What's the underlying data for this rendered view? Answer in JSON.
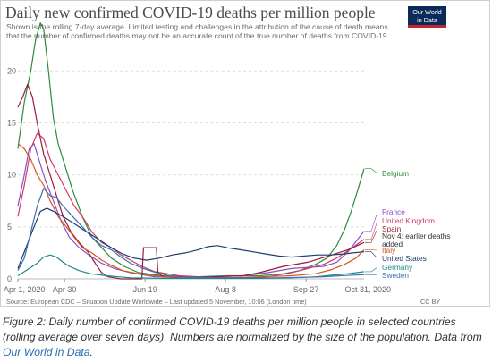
{
  "header": {
    "title": "Daily new confirmed COVID-19 deaths per million people",
    "subtitle": "Shown is the rolling 7-day average. Limited testing and challenges in the attribution of the cause of death means that the number of confirmed deaths may not be an accurate count of the true number of deaths from COVID-19.",
    "logo_line1": "Our World",
    "logo_line2": "in Data"
  },
  "footer": {
    "source": "Source: European CDC – Situation Update Worldwide – Last updated 5 November, 10:06 (London time)",
    "license": "CC BY"
  },
  "caption": {
    "text": "Figure 2: Daily number of confirmed COVID-19 deaths per million people in selected countries (rolling average over seven days). Numbers are normalized by the size of the population. Data from ",
    "link": "Our World in Data",
    "end": "."
  },
  "annotation": {
    "line1": "Nov 4: earlier deaths",
    "line2": "added",
    "color": "#333333"
  },
  "chart_data": {
    "type": "line",
    "title": "Daily new confirmed COVID-19 deaths per million people",
    "xlabel": "",
    "ylabel": "",
    "ylim": [
      0,
      22
    ],
    "yticks": [
      0,
      5,
      10,
      15,
      20
    ],
    "x_tick_labels": [
      {
        "day": 0,
        "label": "Apr 1, 2020"
      },
      {
        "day": 29,
        "label": "Apr 30"
      },
      {
        "day": 79,
        "label": "Jun 19"
      },
      {
        "day": 129,
        "label": "Aug 8"
      },
      {
        "day": 179,
        "label": "Sep 27"
      },
      {
        "day": 213,
        "label": "Oct 31, 2020"
      }
    ],
    "grid": true,
    "legend_placement": "right, at line ends",
    "series": [
      {
        "name": "Belgium",
        "color": "#2e8b3a",
        "points": [
          [
            0,
            12.5
          ],
          [
            4,
            17
          ],
          [
            8,
            20
          ],
          [
            11,
            23
          ],
          [
            14,
            24.6
          ],
          [
            16,
            24
          ],
          [
            19,
            20
          ],
          [
            22,
            15.5
          ],
          [
            25,
            13
          ],
          [
            29,
            11
          ],
          [
            34,
            8.5
          ],
          [
            40,
            6
          ],
          [
            46,
            4
          ],
          [
            52,
            3
          ],
          [
            58,
            2
          ],
          [
            66,
            1.2
          ],
          [
            75,
            0.6
          ],
          [
            90,
            0.3
          ],
          [
            110,
            0.2
          ],
          [
            130,
            0.3
          ],
          [
            150,
            0.3
          ],
          [
            165,
            0.5
          ],
          [
            175,
            0.8
          ],
          [
            185,
            1.4
          ],
          [
            192,
            2
          ],
          [
            198,
            3.2
          ],
          [
            203,
            4.8
          ],
          [
            207,
            6.5
          ],
          [
            211,
            8.5
          ],
          [
            215,
            10.6
          ]
        ]
      },
      {
        "name": "France",
        "color": "#8a4fc8",
        "points": [
          [
            0,
            7
          ],
          [
            4,
            10
          ],
          [
            7,
            12.5
          ],
          [
            10,
            13
          ],
          [
            13,
            11.5
          ],
          [
            17,
            9.5
          ],
          [
            22,
            7.5
          ],
          [
            27,
            5.5
          ],
          [
            32,
            4
          ],
          [
            38,
            3
          ],
          [
            45,
            2.2
          ],
          [
            52,
            1.5
          ],
          [
            60,
            1
          ],
          [
            70,
            0.6
          ],
          [
            85,
            0.2
          ],
          [
            100,
            0.2
          ],
          [
            120,
            0.2
          ],
          [
            140,
            0.3
          ],
          [
            155,
            0.6
          ],
          [
            170,
            1
          ],
          [
            180,
            1.1
          ],
          [
            190,
            1.2
          ],
          [
            198,
            1.6
          ],
          [
            205,
            2.6
          ],
          [
            210,
            3.6
          ],
          [
            215,
            4.6
          ]
        ]
      },
      {
        "name": "United Kingdom",
        "color": "#d03a66",
        "points": [
          [
            0,
            6
          ],
          [
            4,
            9
          ],
          [
            8,
            12.5
          ],
          [
            12,
            14
          ],
          [
            16,
            13.5
          ],
          [
            20,
            11.5
          ],
          [
            25,
            10
          ],
          [
            30,
            8.5
          ],
          [
            35,
            7
          ],
          [
            40,
            6
          ],
          [
            46,
            4.5
          ],
          [
            52,
            3.5
          ],
          [
            58,
            3
          ],
          [
            64,
            2.3
          ],
          [
            70,
            1.8
          ],
          [
            77,
            1.2
          ],
          [
            85,
            0.7
          ],
          [
            100,
            0.3
          ],
          [
            120,
            0.15
          ],
          [
            140,
            0.1
          ],
          [
            155,
            0.2
          ],
          [
            170,
            0.6
          ],
          [
            180,
            1
          ],
          [
            190,
            1.4
          ],
          [
            198,
            2
          ],
          [
            206,
            2.8
          ],
          [
            215,
            3.8
          ]
        ]
      },
      {
        "name": "Spain",
        "color": "#9a1c36",
        "points": [
          [
            0,
            16.5
          ],
          [
            3,
            17.5
          ],
          [
            6,
            18.7
          ],
          [
            9,
            17.5
          ],
          [
            12,
            15
          ],
          [
            16,
            12
          ],
          [
            20,
            10
          ],
          [
            24,
            8
          ],
          [
            28,
            6
          ],
          [
            33,
            4.5
          ],
          [
            38,
            3.5
          ],
          [
            44,
            2.5
          ],
          [
            48,
            1.5
          ],
          [
            52,
            0.6
          ],
          [
            56,
            0.2
          ],
          [
            60,
            0.1
          ],
          [
            64,
            0
          ],
          [
            68,
            0
          ],
          [
            72,
            0
          ],
          [
            77,
            0
          ],
          [
            78,
            3
          ],
          [
            82,
            3
          ],
          [
            86,
            3
          ],
          [
            87,
            0.6
          ],
          [
            90,
            0.2
          ],
          [
            100,
            0.1
          ],
          [
            120,
            0.2
          ],
          [
            140,
            0.3
          ],
          [
            150,
            0.6
          ],
          [
            165,
            1.2
          ],
          [
            180,
            1.6
          ],
          [
            195,
            2.3
          ],
          [
            205,
            2.8
          ],
          [
            215,
            3.5
          ]
        ]
      },
      {
        "name": "Italy",
        "color": "#d4581e",
        "points": [
          [
            0,
            13
          ],
          [
            4,
            12.5
          ],
          [
            8,
            11.5
          ],
          [
            12,
            10
          ],
          [
            16,
            9
          ],
          [
            20,
            7.5
          ],
          [
            25,
            6
          ],
          [
            30,
            5
          ],
          [
            35,
            4
          ],
          [
            40,
            3
          ],
          [
            46,
            2.5
          ],
          [
            52,
            1.8
          ],
          [
            58,
            1.3
          ],
          [
            65,
            0.8
          ],
          [
            75,
            0.5
          ],
          [
            90,
            0.2
          ],
          [
            110,
            0.1
          ],
          [
            130,
            0.1
          ],
          [
            150,
            0.2
          ],
          [
            170,
            0.3
          ],
          [
            185,
            0.5
          ],
          [
            195,
            0.9
          ],
          [
            203,
            1.4
          ],
          [
            210,
            2
          ],
          [
            215,
            2.8
          ]
        ]
      },
      {
        "name": "United States",
        "color": "#1f3d6e",
        "points": [
          [
            0,
            1
          ],
          [
            5,
            3
          ],
          [
            10,
            5
          ],
          [
            14,
            6.5
          ],
          [
            18,
            6.8
          ],
          [
            22,
            6.5
          ],
          [
            28,
            6
          ],
          [
            35,
            5.3
          ],
          [
            42,
            4.6
          ],
          [
            50,
            3.8
          ],
          [
            58,
            3
          ],
          [
            65,
            2.4
          ],
          [
            72,
            2
          ],
          [
            80,
            1.8
          ],
          [
            88,
            2
          ],
          [
            96,
            2.3
          ],
          [
            104,
            2.5
          ],
          [
            112,
            2.8
          ],
          [
            118,
            3.1
          ],
          [
            124,
            3.2
          ],
          [
            130,
            3
          ],
          [
            138,
            2.8
          ],
          [
            146,
            2.6
          ],
          [
            154,
            2.4
          ],
          [
            162,
            2.2
          ],
          [
            170,
            2.1
          ],
          [
            178,
            2.2
          ],
          [
            186,
            2.3
          ],
          [
            194,
            2.3
          ],
          [
            202,
            2.4
          ],
          [
            208,
            2.5
          ],
          [
            215,
            2.6
          ]
        ]
      },
      {
        "name": "Germany",
        "color": "#1a8a8a",
        "points": [
          [
            0,
            0.3
          ],
          [
            4,
            0.7
          ],
          [
            8,
            1.1
          ],
          [
            12,
            1.5
          ],
          [
            16,
            2.1
          ],
          [
            20,
            2.3
          ],
          [
            24,
            2.1
          ],
          [
            28,
            1.6
          ],
          [
            32,
            1.2
          ],
          [
            38,
            0.8
          ],
          [
            45,
            0.5
          ],
          [
            55,
            0.3
          ],
          [
            70,
            0.1
          ],
          [
            90,
            0.05
          ],
          [
            110,
            0.05
          ],
          [
            130,
            0.05
          ],
          [
            150,
            0.05
          ],
          [
            170,
            0.1
          ],
          [
            185,
            0.2
          ],
          [
            195,
            0.35
          ],
          [
            205,
            0.5
          ],
          [
            215,
            0.7
          ]
        ]
      },
      {
        "name": "Sweden",
        "color": "#3d6fb0",
        "points": [
          [
            0,
            0.8
          ],
          [
            4,
            2
          ],
          [
            8,
            4.5
          ],
          [
            12,
            7
          ],
          [
            16,
            8.7
          ],
          [
            20,
            8
          ],
          [
            24,
            7.8
          ],
          [
            28,
            7
          ],
          [
            34,
            6
          ],
          [
            40,
            5
          ],
          [
            46,
            4
          ],
          [
            52,
            3.2
          ],
          [
            58,
            2.8
          ],
          [
            64,
            2.1
          ],
          [
            70,
            1.5
          ],
          [
            78,
            1
          ],
          [
            86,
            0.6
          ],
          [
            94,
            0.3
          ],
          [
            102,
            0.2
          ],
          [
            115,
            0.15
          ],
          [
            130,
            0.1
          ],
          [
            145,
            0.1
          ],
          [
            160,
            0.1
          ],
          [
            175,
            0.15
          ],
          [
            190,
            0.2
          ],
          [
            200,
            0.3
          ],
          [
            215,
            0.4
          ]
        ]
      }
    ]
  }
}
